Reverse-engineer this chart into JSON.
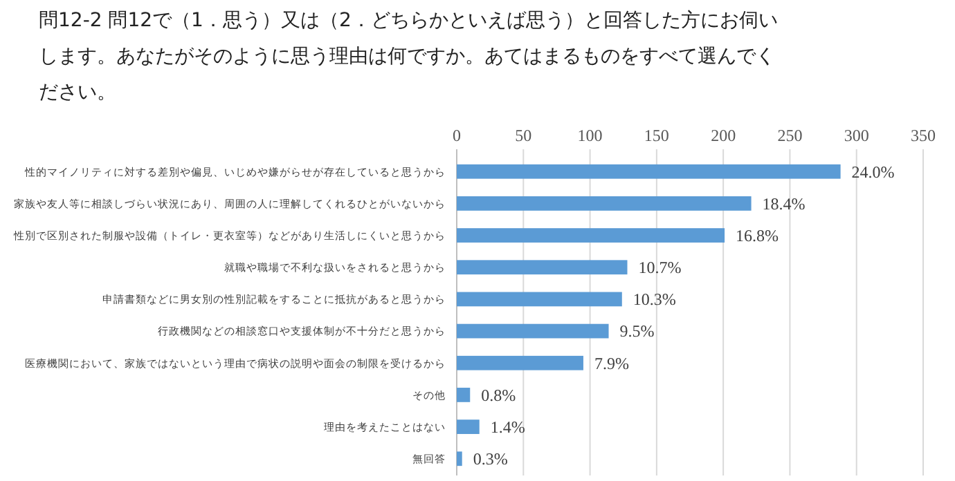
{
  "chart_data": {
    "type": "bar",
    "orientation": "horizontal",
    "title": "問12-2 問12で（1．思う）又は（2．どちらかといえば思う）と回答した方にお伺いします。あなたがそのように思う理由は何ですか。あてはまるものをすべて選んでください。",
    "categories": [
      "性的マイノリティに対する差別や偏見、いじめや嫌がらせが存在していると思うから",
      "家族や友人等に相談しづらい状況にあり、周囲の人に理解してくれるひとがいないから",
      "性別で区別された制服や設備（トイレ・更衣室等）などがあり生活しにくいと思うから",
      "就職や職場で不利な扱いをされると思うから",
      "申請書類などに男女別の性別記載をすることに抵抗があると思うから",
      "行政機関などの相談窓口や支援体制が不十分だと思うから",
      "医療機関において、家族ではないという理由で病状の説明や面会の制限を受けるから",
      "その他",
      "理由を考えたことはない",
      "無回答"
    ],
    "values": [
      288,
      221,
      201,
      128,
      124,
      114,
      95,
      10,
      17,
      4
    ],
    "annotations": [
      {
        "text": "24.0%",
        "x": 288,
        "y": "性的マイノリティに対する差別や偏見、いじめや嫌がらせが存在していると思うから"
      },
      {
        "text": "18.4%",
        "x": 221,
        "y": "家族や友人等に相談しづらい状況にあり、周囲の人に理解してくれるひとがいないから"
      },
      {
        "text": "16.8%",
        "x": 201,
        "y": "性別で区別された制服や設備（トイレ・更衣室等）などがあり生活しにくいと思うから"
      },
      {
        "text": "10.7%",
        "x": 128,
        "y": "就職や職場で不利な扱いをされると思うから"
      },
      {
        "text": "10.3%",
        "x": 124,
        "y": "申請書類などに男女別の性別記載をすることに抵抗があると思うから"
      },
      {
        "text": "9.5%",
        "x": 114,
        "y": "行政機関などの相談窓口や支援体制が不十分だと思うから"
      },
      {
        "text": "7.9%",
        "x": 95,
        "y": "医療機関において、家族ではないという理由で病状の説明や面会の制限を受けるから"
      },
      {
        "text": "0.8%",
        "x": 10,
        "y": "その他"
      },
      {
        "text": "1.4%",
        "x": 17,
        "y": "理由を考えたことはない"
      },
      {
        "text": "0.3%",
        "x": 4,
        "y": "無回答"
      }
    ],
    "color": "#5b9bd5",
    "xlim": [
      0,
      350
    ],
    "xticks": [
      0,
      50,
      100,
      150,
      200,
      250,
      300,
      350
    ],
    "grid": "x"
  }
}
